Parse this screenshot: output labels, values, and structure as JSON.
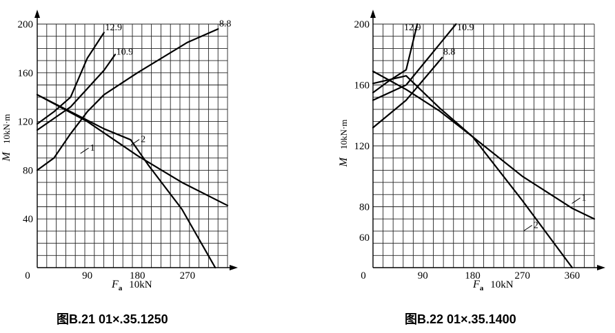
{
  "chart_data": [
    {
      "type": "line",
      "caption": "图B.21   01×.35.1250",
      "xlabel": "F",
      "xlabel_sub": "a",
      "xunit": "10kN",
      "ylabel": "M",
      "yunit": "10kN·m",
      "xlim": [
        0,
        342
      ],
      "ylim": [
        0,
        200
      ],
      "x_ticks": [
        "90",
        "180",
        "270"
      ],
      "y_ticks": [
        "40",
        "80",
        "120",
        "160",
        "200"
      ],
      "origin_label": "0",
      "grid": true,
      "series": [
        {
          "name": "12.9",
          "points": [
            [
              0,
              118
            ],
            [
              30,
              128
            ],
            [
              60,
              140
            ],
            [
              90,
              172
            ],
            [
              120,
              193
            ]
          ],
          "label_at": [
            122,
            195
          ]
        },
        {
          "name": "10.9",
          "points": [
            [
              0,
              113
            ],
            [
              60,
              132
            ],
            [
              120,
              162
            ],
            [
              140,
              175
            ]
          ],
          "label_at": [
            142,
            175
          ]
        },
        {
          "name": "8.8",
          "points": [
            [
              0,
              80
            ],
            [
              30,
              90
            ],
            [
              60,
              110
            ],
            [
              90,
              128
            ],
            [
              120,
              142
            ],
            [
              180,
              160
            ],
            [
              270,
              185
            ],
            [
              325,
              196
            ]
          ],
          "label_at": [
            327,
            198
          ]
        },
        {
          "name": "1",
          "points": [
            [
              0,
              142
            ],
            [
              90,
              120
            ],
            [
              180,
              92
            ],
            [
              260,
              70
            ],
            [
              342,
              51
            ]
          ],
          "label_at": [
            95,
            96
          ]
        },
        {
          "name": "2",
          "points": [
            [
              0,
              142
            ],
            [
              60,
              128
            ],
            [
              120,
              114
            ],
            [
              168,
              105
            ],
            [
              200,
              84
            ],
            [
              260,
              48
            ],
            [
              320,
              0
            ]
          ],
          "label_at": [
            186,
            103
          ]
        }
      ]
    },
    {
      "type": "line",
      "caption": "图B.22   01×.35.1400",
      "xlabel": "F",
      "xlabel_sub": "a",
      "xunit": "10kN",
      "ylabel": "M",
      "yunit": "10kN·m",
      "xlim": [
        0,
        400
      ],
      "ylim": [
        40,
        200
      ],
      "x_ticks": [
        "90",
        "180",
        "270",
        "360"
      ],
      "y_ticks": [
        "60",
        "80",
        "120",
        "160",
        "200"
      ],
      "origin_label": "0",
      "grid": true,
      "series": [
        {
          "name": "12.9",
          "points": [
            [
              0,
              155
            ],
            [
              30,
              163
            ],
            [
              60,
              170
            ],
            [
              80,
              200
            ]
          ],
          "label_at": [
            56,
            196
          ]
        },
        {
          "name": "10.9",
          "points": [
            [
              0,
              150
            ],
            [
              60,
              160
            ],
            [
              150,
              200
            ]
          ],
          "label_at": [
            152,
            196
          ]
        },
        {
          "name": "8.8",
          "points": [
            [
              0,
              132
            ],
            [
              60,
              150
            ],
            [
              125,
              178
            ]
          ],
          "label_at": [
            127,
            180
          ]
        },
        {
          "name": "1",
          "points": [
            [
              0,
              169
            ],
            [
              60,
              157
            ],
            [
              120,
              143
            ],
            [
              180,
              126
            ],
            [
              270,
              100
            ],
            [
              360,
              79
            ],
            [
              400,
              72
            ]
          ],
          "label_at": [
            377,
            84
          ]
        },
        {
          "name": "2",
          "points": [
            [
              0,
              161
            ],
            [
              60,
              166
            ],
            [
              120,
              145
            ],
            [
              180,
              126
            ],
            [
              270,
              84
            ],
            [
              360,
              40
            ]
          ],
          "label_at": [
            290,
            66
          ]
        }
      ]
    }
  ]
}
